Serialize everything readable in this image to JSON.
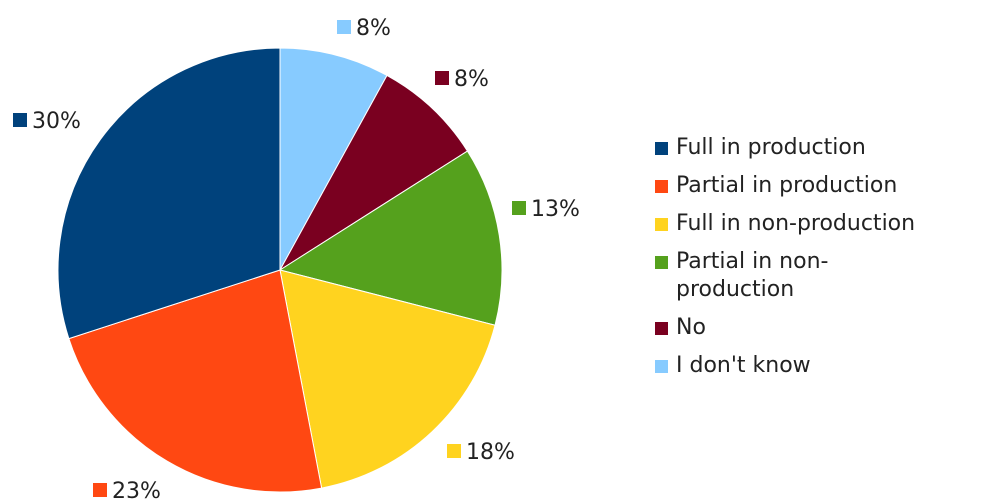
{
  "chart_data": {
    "type": "pie",
    "series": [
      {
        "name": "Full in production",
        "value": 30,
        "label": "30%",
        "color": "#00427c"
      },
      {
        "name": "Partial in production",
        "value": 23,
        "label": "23%",
        "color": "#ff4812"
      },
      {
        "name": "Full in non-production",
        "value": 18,
        "label": "18%",
        "color": "#ffd31f"
      },
      {
        "name": "Partial in non-production",
        "value": 13,
        "label": "13%",
        "color": "#55a11d"
      },
      {
        "name": "No",
        "value": 8,
        "label": "8%",
        "color": "#7a0020"
      },
      {
        "name": "I don't know",
        "value": 8,
        "label": "8%",
        "color": "#87cbff"
      }
    ],
    "start": "12 o'clock",
    "direction": "clockwise from I don't know",
    "legend_position": "right"
  }
}
